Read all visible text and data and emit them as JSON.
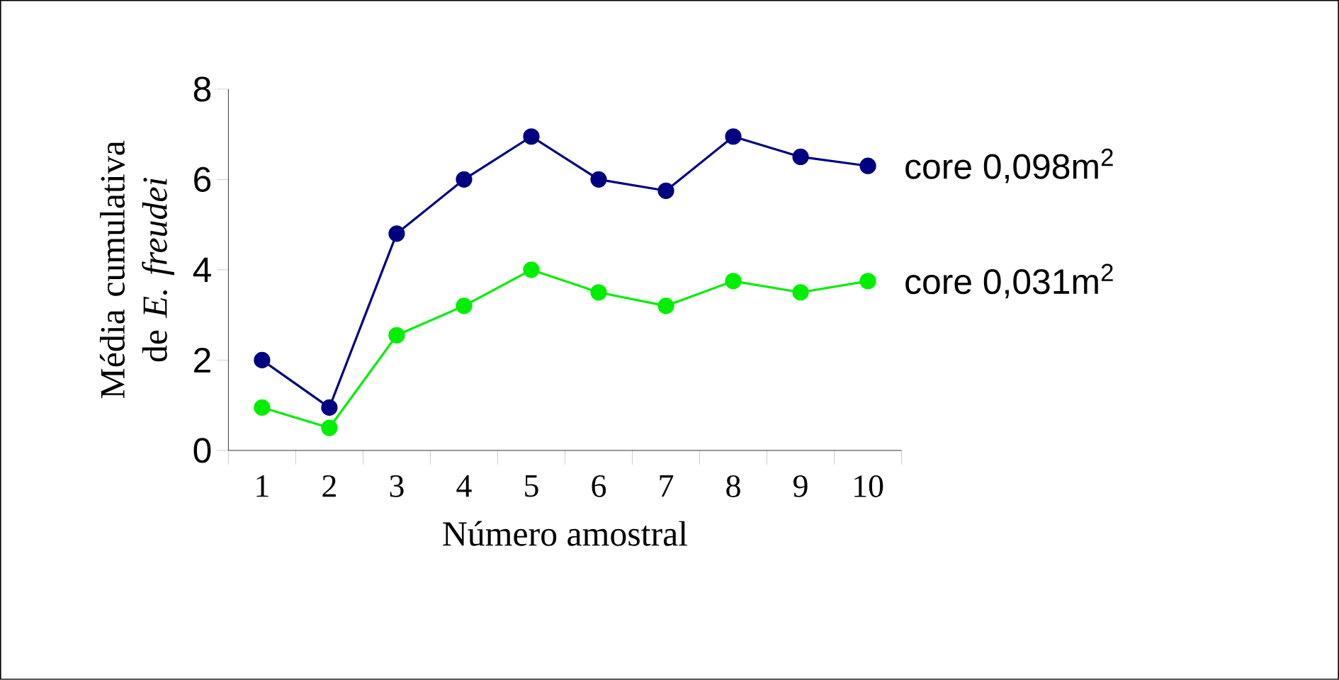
{
  "chart_data": {
    "type": "line",
    "xlabel": "Número amostral",
    "ylabel": "Média cumulativa de *E. freudei*",
    "categories": [
      "1",
      "2",
      "3",
      "4",
      "5",
      "6",
      "7",
      "8",
      "9",
      "10"
    ],
    "series": [
      {
        "name": "core 0,098m$^{2}$",
        "color": "#000080",
        "values": [
          2,
          0.95,
          4.8,
          6,
          6.95,
          6,
          5.75,
          6.95,
          6.5,
          6.3
        ]
      },
      {
        "name": "core 0,031m$^{2}$",
        "color": "#00ee00",
        "values": [
          0.95,
          0.5,
          2.55,
          3.2,
          4,
          3.5,
          3.2,
          3.75,
          3.5,
          3.75
        ]
      }
    ],
    "ylim": [
      0,
      8
    ],
    "yticks": [
      0,
      2,
      4,
      6,
      8
    ],
    "grid": false,
    "legend": false,
    "marker": "circle",
    "line_style": "solid"
  }
}
